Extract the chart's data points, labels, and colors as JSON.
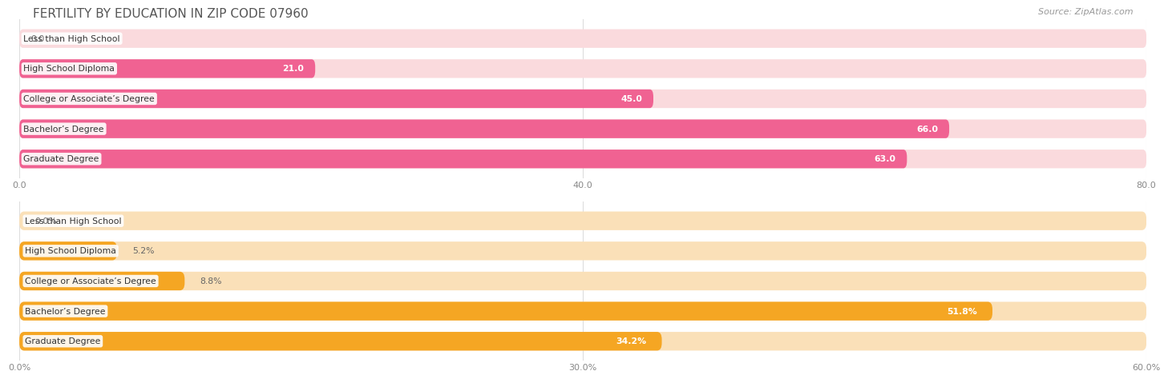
{
  "title": "FERTILITY BY EDUCATION IN ZIP CODE 07960",
  "source": "Source: ZipAtlas.com",
  "top_chart": {
    "categories": [
      "Less than High School",
      "High School Diploma",
      "College or Associate’s Degree",
      "Bachelor’s Degree",
      "Graduate Degree"
    ],
    "values": [
      0.0,
      21.0,
      45.0,
      66.0,
      63.0
    ],
    "xlim": [
      0,
      80
    ],
    "xticks": [
      0.0,
      40.0,
      80.0
    ],
    "xtick_labels": [
      "0.0",
      "40.0",
      "80.0"
    ],
    "bar_color": "#F06292",
    "track_color": "#FADADD",
    "value_inside_threshold": 15,
    "bar_height": 0.62
  },
  "bottom_chart": {
    "categories": [
      "Less than High School",
      "High School Diploma",
      "College or Associate’s Degree",
      "Bachelor’s Degree",
      "Graduate Degree"
    ],
    "values": [
      0.0,
      5.2,
      8.8,
      51.8,
      34.2
    ],
    "xlim": [
      0,
      60
    ],
    "xticks": [
      0.0,
      30.0,
      60.0
    ],
    "xtick_labels": [
      "0.0%",
      "30.0%",
      "60.0%"
    ],
    "bar_color": "#F5A623",
    "track_color": "#FAE0B8",
    "value_inside_threshold": 10,
    "bar_height": 0.62
  },
  "bg_color": "#FFFFFF",
  "grid_color": "#DDDDDD",
  "label_fontsize": 7.8,
  "value_fontsize": 7.8,
  "title_fontsize": 11,
  "source_fontsize": 8
}
